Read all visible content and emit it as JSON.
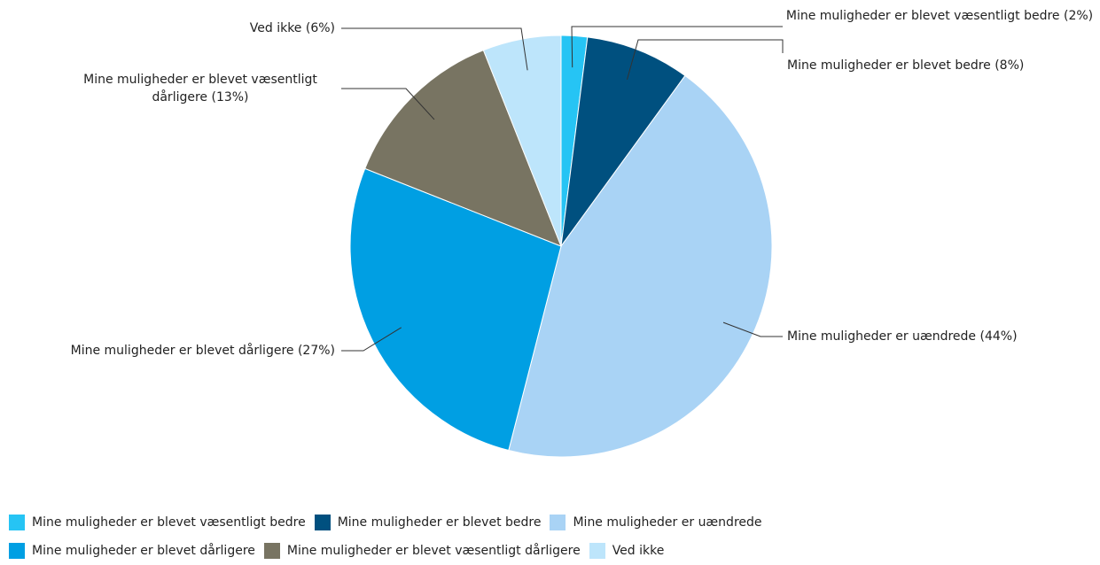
{
  "chart_data": {
    "type": "pie",
    "categories": [
      "Mine muligheder er blevet væsentligt bedre",
      "Mine muligheder er blevet bedre",
      "Mine muligheder er uændrede",
      "Mine muligheder er blevet dårligere",
      "Mine muligheder er blevet væsentligt dårligere",
      "Ved ikke"
    ],
    "values": [
      2,
      8,
      44,
      27,
      13,
      6
    ],
    "value_labels": [
      "Mine muligheder er blevet væsentligt bedre (2%)",
      "Mine muligheder er blevet bedre (8%)",
      "Mine muligheder er uændrede (44%)",
      "Mine muligheder er blevet dårligere (27%)",
      "Mine muligheder er blevet væsentligt dårligere (13%)",
      "Ved ikke (6%)"
    ],
    "colors": [
      "#26c4f4",
      "#00507f",
      "#a9d3f5",
      "#009fe3",
      "#787462",
      "#bde5fb"
    ],
    "legend": "bottom"
  }
}
